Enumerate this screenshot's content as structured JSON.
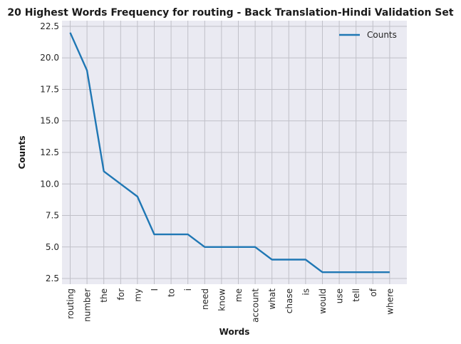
{
  "chart_data": {
    "type": "line",
    "title": "20 Highest Words Frequency for routing - Back Translation-Hindi Validation Set",
    "xlabel": "Words",
    "ylabel": "Counts",
    "categories": [
      "routing",
      "number",
      "the",
      "for",
      "my",
      "I",
      "to",
      "i",
      "need",
      "know",
      "me",
      "account",
      "what",
      "chase",
      "is",
      "would",
      "use",
      "tell",
      "of",
      "where"
    ],
    "series": [
      {
        "name": "Counts",
        "values": [
          22,
          19,
          11,
          10,
          9,
          6,
          6,
          6,
          5,
          5,
          5,
          5,
          4,
          4,
          4,
          3,
          3,
          3,
          3,
          3
        ],
        "color": "#1f77b4"
      }
    ],
    "yticks": [
      "2.5",
      "5.0",
      "7.5",
      "10.0",
      "12.5",
      "15.0",
      "17.5",
      "20.0",
      "22.5"
    ],
    "ylim": [
      2.05,
      22.95
    ],
    "grid": true,
    "legend_position": "top-right",
    "colors": {
      "plot_background": "#eaeaf2",
      "grid": "#c0c0c8",
      "line": "#1f77b4"
    }
  }
}
